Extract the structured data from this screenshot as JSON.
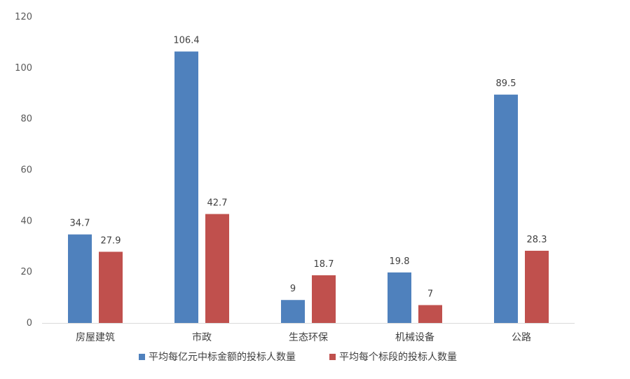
{
  "colors": {
    "series1": "#4F81BD",
    "series2": "#C0504D",
    "axis": "#D9D9D9"
  },
  "chart_data": {
    "type": "bar",
    "title": "",
    "xlabel": "",
    "ylabel": "",
    "ylim": [
      0,
      120
    ],
    "yticks": [
      0,
      20,
      40,
      60,
      80,
      100,
      120
    ],
    "grid": false,
    "legend": "bottom",
    "categories": [
      "房屋建筑",
      "市政",
      "生态环保",
      "机械设备",
      "公路"
    ],
    "series": [
      {
        "name": "平均每亿元中标金额的投标人数量",
        "values": [
          34.7,
          106.4,
          9,
          19.8,
          89.5
        ]
      },
      {
        "name": "平均每个标段的投标人数量",
        "values": [
          27.9,
          42.7,
          18.7,
          7,
          28.3
        ]
      }
    ]
  }
}
